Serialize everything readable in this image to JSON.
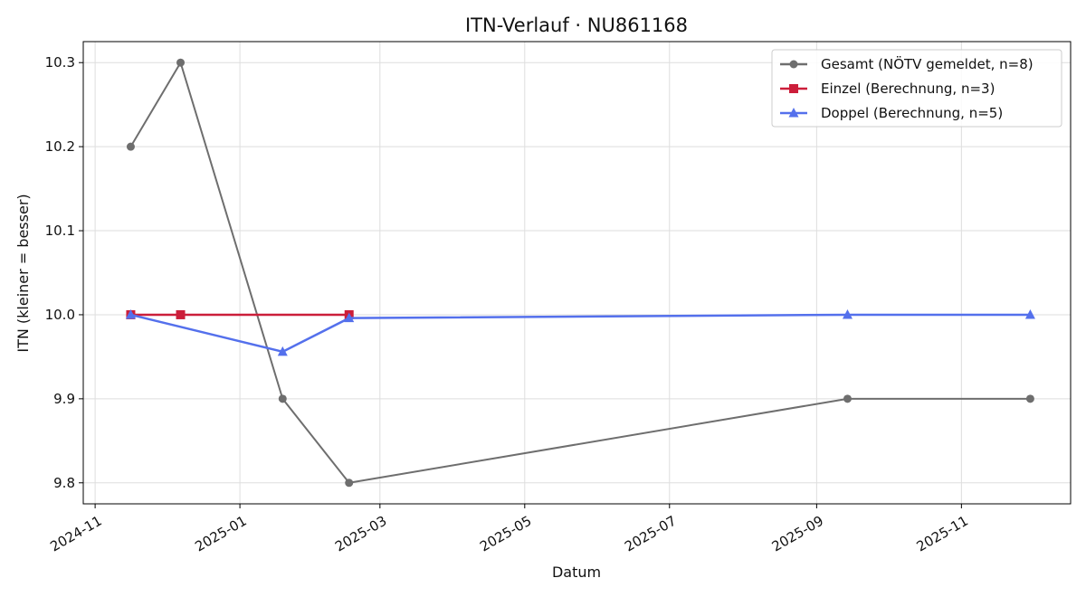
{
  "chart_data": {
    "type": "line",
    "title": "ITN-Verlauf · NU861168",
    "xlabel": "Datum",
    "ylabel": "ITN  (kleiner = besser)",
    "x_axis_type": "date",
    "xlim": [
      "2024-10-27",
      "2025-12-17"
    ],
    "ylim": [
      9.775,
      10.325
    ],
    "x_ticks": [
      "2024-11-01",
      "2025-01-01",
      "2025-03-01",
      "2025-05-01",
      "2025-07-01",
      "2025-09-01",
      "2025-11-01"
    ],
    "x_tick_labels": [
      "2024-11",
      "2025-01",
      "2025-03",
      "2025-05",
      "2025-07",
      "2025-09",
      "2025-11"
    ],
    "y_ticks": [
      9.8,
      9.9,
      10.0,
      10.1,
      10.2,
      10.3
    ],
    "y_tick_labels": [
      "9.8",
      "9.9",
      "10.0",
      "10.1",
      "10.2",
      "10.3"
    ],
    "grid": true,
    "legend_position": "top-right",
    "series": [
      {
        "name": "Gesamt (NÖTV gemeldet, n=8)",
        "color": "#6e6e6e",
        "marker": "circle",
        "points": [
          {
            "x": "2024-11-16",
            "y": 10.2
          },
          {
            "x": "2024-12-07",
            "y": 10.3
          },
          {
            "x": "2025-01-19",
            "y": 9.9
          },
          {
            "x": "2025-02-16",
            "y": 9.8
          },
          {
            "x": "2025-09-14",
            "y": 9.9
          },
          {
            "x": "2025-11-30",
            "y": 9.9
          }
        ]
      },
      {
        "name": "Einzel (Berechnung, n=3)",
        "color": "#cc1e3a",
        "marker": "square",
        "points": [
          {
            "x": "2024-11-16",
            "y": 10.0
          },
          {
            "x": "2024-12-07",
            "y": 10.0
          },
          {
            "x": "2025-02-16",
            "y": 10.0
          }
        ]
      },
      {
        "name": "Doppel (Berechnung, n=5)",
        "color": "#5470ec",
        "marker": "triangle",
        "points": [
          {
            "x": "2024-11-16",
            "y": 10.0
          },
          {
            "x": "2025-01-19",
            "y": 9.956
          },
          {
            "x": "2025-02-16",
            "y": 9.996
          },
          {
            "x": "2025-09-14",
            "y": 10.0
          },
          {
            "x": "2025-11-30",
            "y": 10.0
          }
        ]
      }
    ]
  }
}
